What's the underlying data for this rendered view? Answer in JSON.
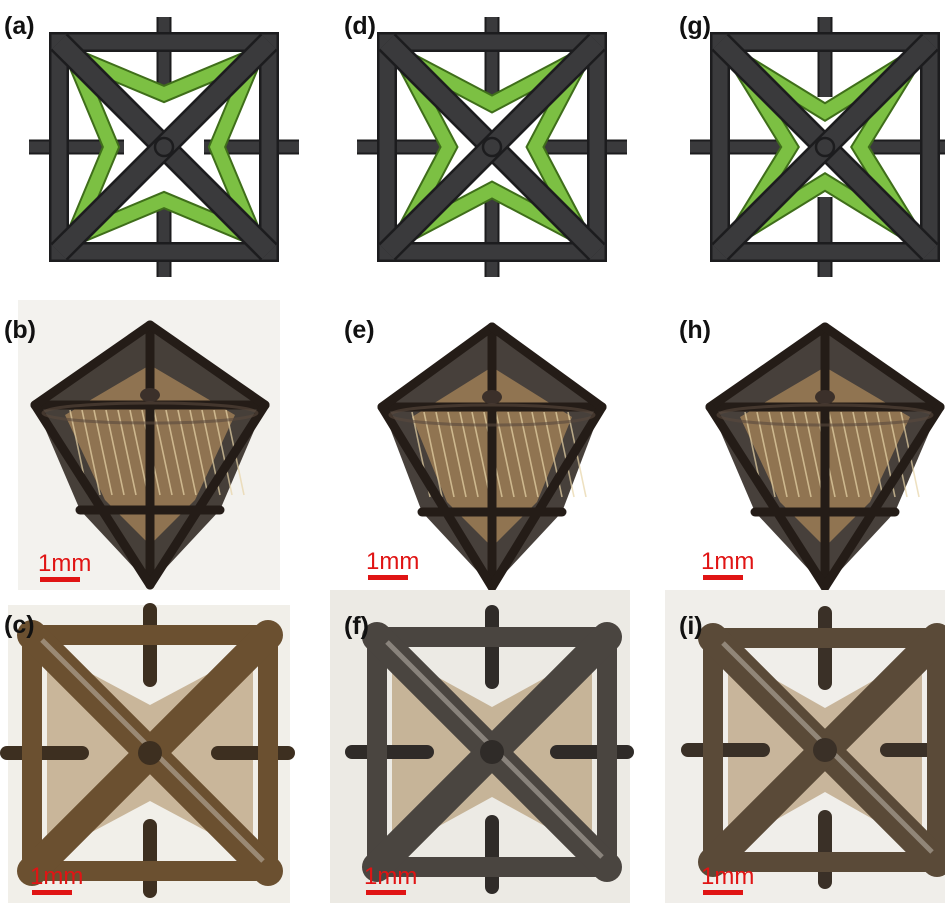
{
  "panels": [
    {
      "id": "a",
      "label": "(a)",
      "kind": "schematic"
    },
    {
      "id": "b",
      "label": "(b)",
      "kind": "photo-side",
      "scale": "1mm"
    },
    {
      "id": "c",
      "label": "(c)",
      "kind": "photo-top",
      "scale": "1mm"
    },
    {
      "id": "d",
      "label": "(d)",
      "kind": "schematic"
    },
    {
      "id": "e",
      "label": "(e)",
      "kind": "photo-side",
      "scale": "1mm"
    },
    {
      "id": "f",
      "label": "(f)",
      "kind": "photo-top",
      "scale": "1mm"
    },
    {
      "id": "g",
      "label": "(g)",
      "kind": "schematic"
    },
    {
      "id": "h",
      "label": "(h)",
      "kind": "photo-side",
      "scale": "1mm"
    },
    {
      "id": "i",
      "label": "(i)",
      "kind": "photo-top",
      "scale": "1mm"
    }
  ],
  "colors": {
    "frame": "#3a3a3c",
    "frame_edge": "#1c1c1e",
    "ligament": "#7cc043",
    "ligament_edge": "#3f6e1a",
    "scale": "#e01414",
    "photo_bg": "#f4f3ef",
    "print_dark": "#2e2620",
    "print_light": "#a8865a"
  }
}
